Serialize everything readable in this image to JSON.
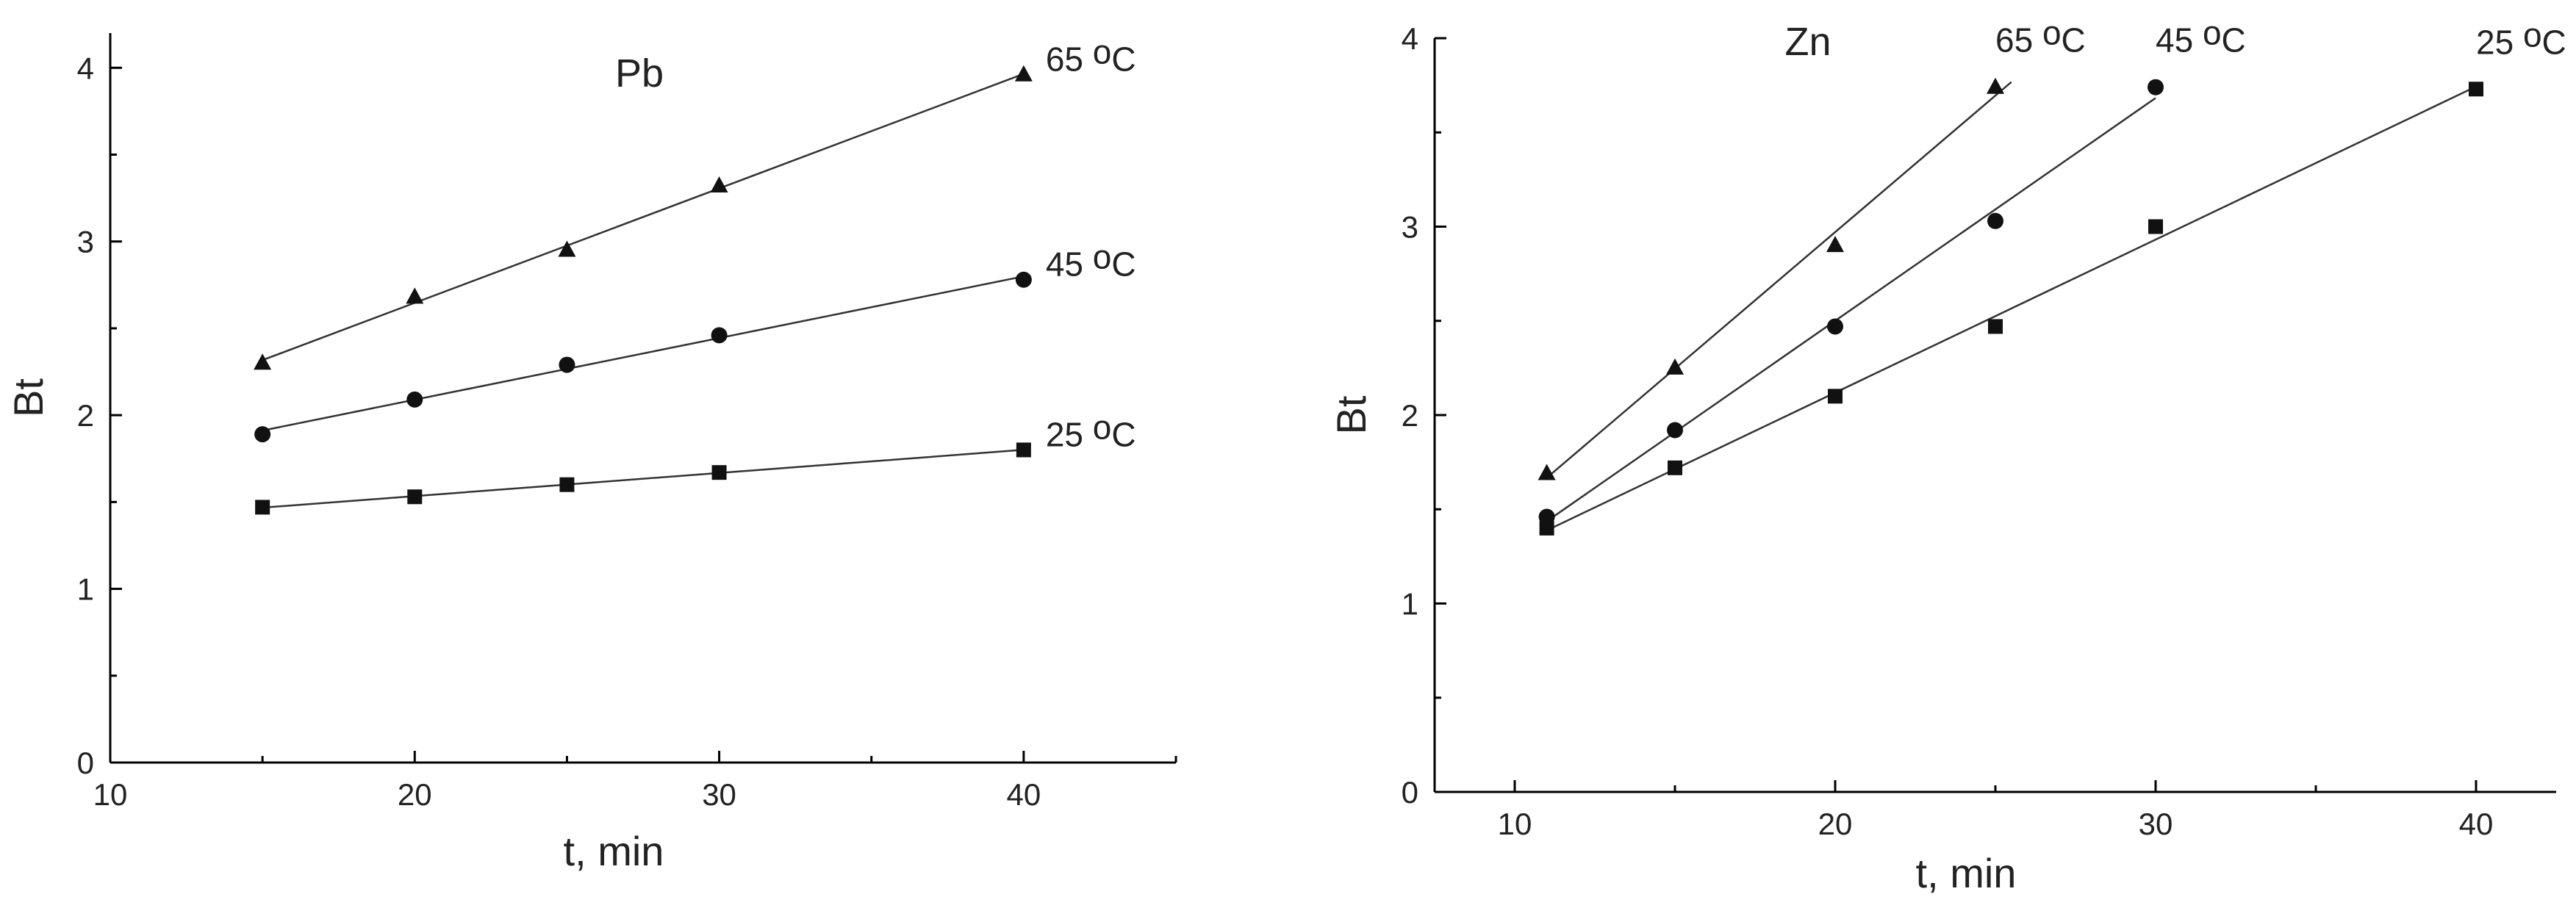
{
  "chart_data": [
    {
      "type": "scatter",
      "title": "Pb",
      "xlabel": "t, min",
      "ylabel": "Bt",
      "xlim": [
        10,
        45
      ],
      "ylim": [
        0,
        4.2
      ],
      "xticks": [
        10,
        20,
        30,
        40
      ],
      "yticks": [
        0,
        1,
        2,
        3,
        4
      ],
      "grid": false,
      "series": [
        {
          "name": "65 °C",
          "marker": "triangle",
          "x": [
            15,
            20,
            25,
            30,
            40
          ],
          "y": [
            2.3,
            2.68,
            2.95,
            3.32,
            3.96
          ]
        },
        {
          "name": "45 °C",
          "marker": "circle",
          "x": [
            15,
            20,
            25,
            30,
            40
          ],
          "y": [
            1.89,
            2.09,
            2.29,
            2.46,
            2.78
          ]
        },
        {
          "name": "25 °C",
          "marker": "square",
          "x": [
            15,
            20,
            25,
            30,
            40
          ],
          "y": [
            1.47,
            1.53,
            1.6,
            1.67,
            1.8
          ]
        }
      ]
    },
    {
      "type": "scatter",
      "title": "Zn",
      "xlabel": "t, min",
      "ylabel": "Bt",
      "xlim": [
        7.5,
        42.5
      ],
      "ylim": [
        0,
        4
      ],
      "xticks": [
        10,
        20,
        30,
        40
      ],
      "yticks": [
        0,
        1,
        2,
        3,
        4
      ],
      "grid": false,
      "series": [
        {
          "name": "65 °C",
          "marker": "triangle",
          "x": [
            11,
            15,
            20,
            25
          ],
          "y": [
            1.69,
            2.25,
            2.9,
            3.74
          ]
        },
        {
          "name": "45 °C",
          "marker": "circle",
          "x": [
            11,
            15,
            20,
            25,
            30
          ],
          "y": [
            1.46,
            1.92,
            2.47,
            3.03,
            3.74
          ]
        },
        {
          "name": "25 °C",
          "marker": "square",
          "x": [
            11,
            15,
            20,
            25,
            30,
            40
          ],
          "y": [
            1.4,
            1.72,
            2.1,
            2.47,
            3.0,
            3.73
          ]
        }
      ]
    }
  ]
}
